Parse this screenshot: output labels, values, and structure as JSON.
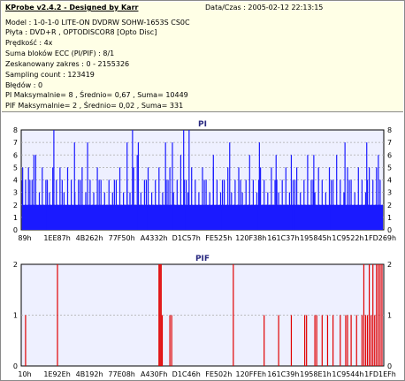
{
  "header": {
    "title": "KProbe v2.4.2 - Designed by Karr",
    "date": "Data/Czas : 2005-02-12 22:13:15",
    "lines": [
      "Model : 1-0-1-0 LITE-ON DVDRW SOHW-1653S CS0C",
      "Płyta : DVD+R , OPTODISCOR8 [Opto Disc]",
      "Prędkość : 4x",
      "Suma bloków ECC (PI/PIF) : 8/1",
      "Zeskanowany zakres : 0 - 2155326",
      "Sampling count : 123419",
      "Błędów : 0",
      "PI Maksymalnie= 8 , Średnio= 0,67 , Suma= 10449",
      "PIF Maksymalnie= 2 , Średnio= 0,02 , Suma= 331"
    ]
  },
  "colors": {
    "pi": "#1a1aff",
    "pif": "#e00000",
    "plot_bg": "#eef0ff",
    "grid": "#aaaaaa"
  },
  "chart_data": [
    {
      "type": "bar",
      "title": "PI",
      "ylim": [
        0,
        8
      ],
      "yticks": [
        0,
        1,
        2,
        3,
        4,
        5,
        6,
        7,
        8
      ],
      "grid": true,
      "xticklabels": [
        "89h",
        "1EE87h",
        "4B262h",
        "77F50h",
        "A4332h",
        "D1C57h",
        "FE525h",
        "120F38h",
        "161C37h",
        "195845h",
        "1C9522h",
        "1FD269h"
      ],
      "baseline": 2,
      "spikes": [
        {
          "x": 0.004,
          "v": 5
        },
        {
          "x": 0.012,
          "v": 4
        },
        {
          "x": 0.02,
          "v": 5
        },
        {
          "x": 0.03,
          "v": 4
        },
        {
          "x": 0.04,
          "v": 6
        },
        {
          "x": 0.05,
          "v": 3
        },
        {
          "x": 0.058,
          "v": 5
        },
        {
          "x": 0.068,
          "v": 4
        },
        {
          "x": 0.078,
          "v": 3
        },
        {
          "x": 0.087,
          "v": 5
        },
        {
          "x": 0.097,
          "v": 4
        },
        {
          "x": 0.107,
          "v": 5
        },
        {
          "x": 0.118,
          "v": 3
        },
        {
          "x": 0.128,
          "v": 5
        },
        {
          "x": 0.138,
          "v": 4
        },
        {
          "x": 0.148,
          "v": 3
        },
        {
          "x": 0.158,
          "v": 4
        },
        {
          "x": 0.168,
          "v": 5
        },
        {
          "x": 0.178,
          "v": 3
        },
        {
          "x": 0.19,
          "v": 4
        },
        {
          "x": 0.2,
          "v": 3
        },
        {
          "x": 0.21,
          "v": 5
        },
        {
          "x": 0.22,
          "v": 4
        },
        {
          "x": 0.23,
          "v": 3
        },
        {
          "x": 0.242,
          "v": 4
        },
        {
          "x": 0.252,
          "v": 3
        },
        {
          "x": 0.262,
          "v": 4
        },
        {
          "x": 0.272,
          "v": 5
        },
        {
          "x": 0.282,
          "v": 3
        },
        {
          "x": 0.292,
          "v": 4
        },
        {
          "x": 0.3,
          "v": 3
        },
        {
          "x": 0.31,
          "v": 5
        },
        {
          "x": 0.32,
          "v": 6
        },
        {
          "x": 0.33,
          "v": 3
        },
        {
          "x": 0.34,
          "v": 4
        },
        {
          "x": 0.35,
          "v": 5
        },
        {
          "x": 0.36,
          "v": 3
        },
        {
          "x": 0.37,
          "v": 4
        },
        {
          "x": 0.38,
          "v": 5
        },
        {
          "x": 0.39,
          "v": 3
        },
        {
          "x": 0.4,
          "v": 4
        },
        {
          "x": 0.41,
          "v": 5
        },
        {
          "x": 0.42,
          "v": 3
        },
        {
          "x": 0.43,
          "v": 4
        },
        {
          "x": 0.44,
          "v": 6
        },
        {
          "x": 0.45,
          "v": 4
        },
        {
          "x": 0.46,
          "v": 3
        },
        {
          "x": 0.47,
          "v": 5
        },
        {
          "x": 0.48,
          "v": 4
        },
        {
          "x": 0.49,
          "v": 3
        },
        {
          "x": 0.5,
          "v": 5
        },
        {
          "x": 0.51,
          "v": 4
        },
        {
          "x": 0.52,
          "v": 3
        },
        {
          "x": 0.53,
          "v": 5
        },
        {
          "x": 0.54,
          "v": 4
        },
        {
          "x": 0.55,
          "v": 3
        },
        {
          "x": 0.56,
          "v": 4
        },
        {
          "x": 0.57,
          "v": 5
        },
        {
          "x": 0.58,
          "v": 3
        },
        {
          "x": 0.59,
          "v": 4
        },
        {
          "x": 0.6,
          "v": 5
        },
        {
          "x": 0.61,
          "v": 3
        },
        {
          "x": 0.62,
          "v": 4
        },
        {
          "x": 0.63,
          "v": 6
        },
        {
          "x": 0.64,
          "v": 4
        },
        {
          "x": 0.65,
          "v": 3
        },
        {
          "x": 0.66,
          "v": 5
        },
        {
          "x": 0.67,
          "v": 4
        },
        {
          "x": 0.68,
          "v": 3
        },
        {
          "x": 0.69,
          "v": 5
        },
        {
          "x": 0.7,
          "v": 4
        },
        {
          "x": 0.71,
          "v": 3
        },
        {
          "x": 0.72,
          "v": 4
        },
        {
          "x": 0.73,
          "v": 5
        },
        {
          "x": 0.74,
          "v": 3
        },
        {
          "x": 0.75,
          "v": 4
        },
        {
          "x": 0.76,
          "v": 5
        },
        {
          "x": 0.77,
          "v": 3
        },
        {
          "x": 0.78,
          "v": 4
        },
        {
          "x": 0.79,
          "v": 6
        },
        {
          "x": 0.8,
          "v": 4
        },
        {
          "x": 0.81,
          "v": 3
        },
        {
          "x": 0.82,
          "v": 5
        },
        {
          "x": 0.83,
          "v": 4
        },
        {
          "x": 0.84,
          "v": 3
        },
        {
          "x": 0.85,
          "v": 5
        },
        {
          "x": 0.86,
          "v": 4
        },
        {
          "x": 0.87,
          "v": 6
        },
        {
          "x": 0.88,
          "v": 4
        },
        {
          "x": 0.89,
          "v": 3
        },
        {
          "x": 0.9,
          "v": 5
        },
        {
          "x": 0.91,
          "v": 4
        },
        {
          "x": 0.92,
          "v": 3
        },
        {
          "x": 0.93,
          "v": 5
        },
        {
          "x": 0.94,
          "v": 4
        },
        {
          "x": 0.95,
          "v": 3
        },
        {
          "x": 0.96,
          "v": 5
        },
        {
          "x": 0.97,
          "v": 4
        },
        {
          "x": 0.98,
          "v": 5
        },
        {
          "x": 0.99,
          "v": 4
        },
        {
          "x": 0.003,
          "v": 4
        },
        {
          "x": 0.024,
          "v": 4
        },
        {
          "x": 0.072,
          "v": 4
        },
        {
          "x": 0.113,
          "v": 4
        },
        {
          "x": 0.163,
          "v": 4
        },
        {
          "x": 0.215,
          "v": 4
        },
        {
          "x": 0.257,
          "v": 4
        },
        {
          "x": 0.345,
          "v": 4
        },
        {
          "x": 0.405,
          "v": 4
        },
        {
          "x": 0.455,
          "v": 4
        },
        {
          "x": 0.505,
          "v": 4
        },
        {
          "x": 0.555,
          "v": 4
        },
        {
          "x": 0.605,
          "v": 4
        },
        {
          "x": 0.655,
          "v": 4
        },
        {
          "x": 0.705,
          "v": 4
        },
        {
          "x": 0.755,
          "v": 4
        },
        {
          "x": 0.805,
          "v": 4
        },
        {
          "x": 0.855,
          "v": 4
        },
        {
          "x": 0.905,
          "v": 4
        },
        {
          "x": 0.955,
          "v": 4
        },
        {
          "x": 0.09,
          "v": 8
        },
        {
          "x": 0.147,
          "v": 7
        },
        {
          "x": 0.183,
          "v": 7
        },
        {
          "x": 0.292,
          "v": 7
        },
        {
          "x": 0.307,
          "v": 8
        },
        {
          "x": 0.323,
          "v": 7
        },
        {
          "x": 0.398,
          "v": 7
        },
        {
          "x": 0.417,
          "v": 7
        },
        {
          "x": 0.448,
          "v": 8
        },
        {
          "x": 0.463,
          "v": 8
        },
        {
          "x": 0.53,
          "v": 6
        },
        {
          "x": 0.575,
          "v": 7
        },
        {
          "x": 0.657,
          "v": 7
        },
        {
          "x": 0.703,
          "v": 6
        },
        {
          "x": 0.807,
          "v": 6
        },
        {
          "x": 0.893,
          "v": 7
        },
        {
          "x": 0.953,
          "v": 7
        },
        {
          "x": 0.985,
          "v": 6
        },
        {
          "x": 0.035,
          "v": 6
        },
        {
          "x": 0.745,
          "v": 6
        }
      ]
    },
    {
      "type": "bar",
      "title": "PIF",
      "ylim": [
        0,
        2
      ],
      "yticks": [
        0,
        1,
        2
      ],
      "grid": true,
      "xticklabels": [
        "10h",
        "1E92Eh",
        "4B192h",
        "77E08h",
        "A430Fh",
        "D1C46h",
        "FE502h",
        "120FFEh",
        "161C39h",
        "1958E1h",
        "1C9544h",
        "1FD1EFh"
      ],
      "spikes": [
        {
          "x": 0.012,
          "v": 1
        },
        {
          "x": 0.1,
          "v": 2
        },
        {
          "x": 0.38,
          "v": 2
        },
        {
          "x": 0.383,
          "v": 2
        },
        {
          "x": 0.386,
          "v": 2
        },
        {
          "x": 0.389,
          "v": 1
        },
        {
          "x": 0.41,
          "v": 1
        },
        {
          "x": 0.415,
          "v": 1
        },
        {
          "x": 0.585,
          "v": 2
        },
        {
          "x": 0.67,
          "v": 1
        },
        {
          "x": 0.71,
          "v": 1
        },
        {
          "x": 0.745,
          "v": 1
        },
        {
          "x": 0.782,
          "v": 1
        },
        {
          "x": 0.787,
          "v": 1
        },
        {
          "x": 0.81,
          "v": 1
        },
        {
          "x": 0.815,
          "v": 1
        },
        {
          "x": 0.83,
          "v": 1
        },
        {
          "x": 0.845,
          "v": 1
        },
        {
          "x": 0.86,
          "v": 1
        },
        {
          "x": 0.88,
          "v": 1
        },
        {
          "x": 0.895,
          "v": 1
        },
        {
          "x": 0.9,
          "v": 1
        },
        {
          "x": 0.91,
          "v": 1
        },
        {
          "x": 0.925,
          "v": 1
        },
        {
          "x": 0.94,
          "v": 1
        },
        {
          "x": 0.945,
          "v": 2
        },
        {
          "x": 0.95,
          "v": 1
        },
        {
          "x": 0.955,
          "v": 1
        },
        {
          "x": 0.96,
          "v": 2
        },
        {
          "x": 0.965,
          "v": 1
        },
        {
          "x": 0.97,
          "v": 2
        },
        {
          "x": 0.975,
          "v": 1
        },
        {
          "x": 0.98,
          "v": 2
        },
        {
          "x": 0.985,
          "v": 2
        },
        {
          "x": 0.99,
          "v": 2
        },
        {
          "x": 0.995,
          "v": 2
        }
      ]
    }
  ]
}
